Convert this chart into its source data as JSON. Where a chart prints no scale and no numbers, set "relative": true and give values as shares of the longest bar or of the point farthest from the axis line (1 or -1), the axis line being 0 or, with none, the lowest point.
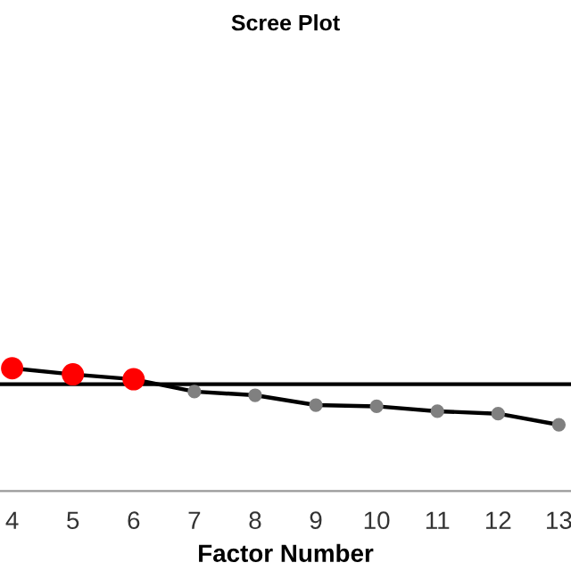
{
  "chart_data": {
    "type": "line",
    "title": "Scree Plot",
    "xlabel": "Factor Number",
    "relative": true,
    "x": [
      4,
      5,
      6,
      7,
      8,
      9,
      10,
      11,
      12,
      13
    ],
    "series": [
      {
        "color": "#000000",
        "colors": [
          "#ff0000",
          "#ff0000",
          "#ff0000",
          "#808080",
          "#808080",
          "#808080",
          "#808080",
          "#808080",
          "#808080",
          "#808080"
        ],
        "values": [
          1,
          0.95,
          0.91,
          0.81,
          0.78,
          0.7,
          0.69,
          0.65,
          0.63,
          0.54
        ]
      }
    ],
    "xlim": [
      3.8,
      13.2
    ],
    "xticks": [
      4,
      5,
      6,
      7,
      8,
      9,
      10,
      11,
      12,
      13
    ],
    "ref_lines": [
      {
        "axis": "y",
        "value": 0.87,
        "color": "#000000"
      }
    ],
    "marker": "circle",
    "line_style": "solid",
    "grid": false
  }
}
